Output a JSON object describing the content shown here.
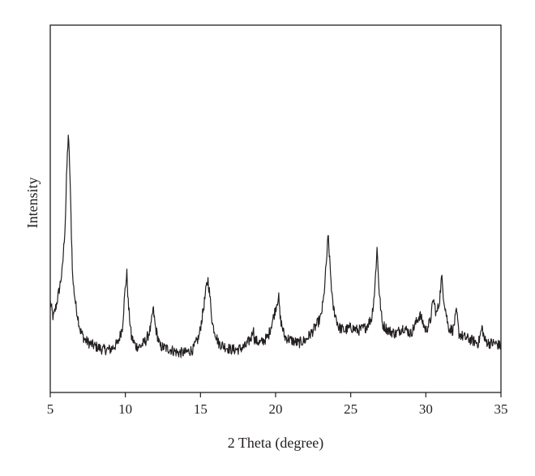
{
  "chart_data": {
    "type": "line",
    "title": "",
    "xlabel": "2 Theta (degree)",
    "ylabel": "Intensity",
    "xlim": [
      5,
      35
    ],
    "ylim": [
      0,
      100
    ],
    "xticks": [
      5,
      10,
      15,
      20,
      25,
      30,
      35
    ],
    "xtick_labels": [
      "5",
      "10",
      "15",
      "20",
      "25",
      "30",
      "35"
    ],
    "y_tick_labels_shown": false,
    "grid": false,
    "legend": "none",
    "series": [
      {
        "color": "#231f20",
        "x": [
          5.0,
          5.2,
          5.4,
          5.6,
          5.8,
          6.0,
          6.1,
          6.2,
          6.3,
          6.4,
          6.5,
          6.7,
          7.0,
          7.3,
          7.6,
          8.0,
          8.5,
          9.0,
          9.5,
          9.8,
          10.0,
          10.1,
          10.2,
          10.4,
          10.7,
          11.0,
          11.4,
          11.7,
          11.85,
          12.0,
          12.3,
          13.0,
          13.5,
          14.0,
          14.5,
          14.9,
          15.2,
          15.4,
          15.5,
          15.6,
          15.8,
          16.2,
          17.0,
          17.5,
          18.0,
          18.4,
          18.5,
          18.6,
          19.0,
          19.5,
          19.9,
          20.1,
          20.2,
          20.3,
          20.6,
          21.0,
          21.5,
          22.0,
          22.5,
          23.0,
          23.2,
          23.4,
          23.5,
          23.6,
          23.8,
          24.2,
          24.6,
          25.0,
          25.5,
          26.0,
          26.4,
          26.6,
          26.75,
          26.9,
          27.1,
          27.5,
          28.0,
          28.5,
          29.0,
          29.3,
          29.6,
          30.0,
          30.3,
          30.5,
          30.7,
          30.9,
          31.05,
          31.2,
          31.5,
          31.8,
          32.05,
          32.2,
          32.5,
          33.0,
          33.5,
          33.75,
          33.9,
          34.2,
          34.6,
          35.0
        ],
        "y": [
          25,
          20,
          24,
          29,
          35,
          50,
          67,
          78,
          67,
          48,
          32,
          24,
          16,
          13,
          12,
          11,
          10,
          10,
          12,
          17,
          30,
          34,
          24,
          14,
          11,
          11,
          13,
          17,
          23,
          17,
          11,
          10,
          9,
          9,
          10,
          14,
          23,
          30,
          32,
          28,
          18,
          12,
          10,
          10,
          11,
          14,
          17,
          13,
          12,
          14,
          21,
          25,
          27,
          20,
          14,
          13,
          12,
          13,
          16,
          20,
          26,
          39,
          46,
          38,
          24,
          17,
          16,
          17,
          16,
          17,
          20,
          29,
          42,
          28,
          18,
          16,
          15,
          17,
          15,
          18,
          21,
          16,
          19,
          26,
          21,
          25,
          33,
          26,
          17,
          16,
          22,
          15,
          14,
          13,
          12,
          17,
          13,
          12,
          12,
          11
        ]
      }
    ]
  }
}
